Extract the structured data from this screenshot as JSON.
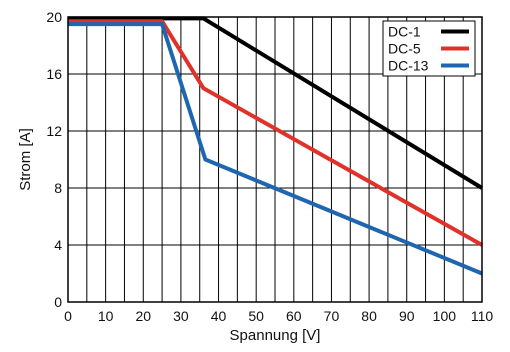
{
  "chart_data": {
    "type": "line",
    "xlabel": "Spannung [V]",
    "ylabel": "Strom [A]",
    "xlim": [
      0,
      110
    ],
    "ylim": [
      0,
      20
    ],
    "xticks": [
      0,
      10,
      20,
      30,
      40,
      50,
      60,
      70,
      80,
      90,
      100,
      110
    ],
    "yticks": [
      0,
      4,
      8,
      12,
      16,
      20
    ],
    "x_minor_step": 5,
    "grid": true,
    "legend": "top-right",
    "series": [
      {
        "name": "DC-1",
        "color": "#000000",
        "points": [
          [
            0,
            19.9
          ],
          [
            36,
            19.9
          ],
          [
            110,
            8
          ]
        ]
      },
      {
        "name": "DC-5",
        "color": "#e0312b",
        "points": [
          [
            0,
            19.7
          ],
          [
            25,
            19.7
          ],
          [
            36,
            15
          ],
          [
            110,
            4
          ]
        ]
      },
      {
        "name": "DC-13",
        "color": "#1f66b0",
        "points": [
          [
            0,
            19.5
          ],
          [
            25,
            19.5
          ],
          [
            36.5,
            10
          ],
          [
            110,
            2
          ]
        ]
      }
    ]
  }
}
